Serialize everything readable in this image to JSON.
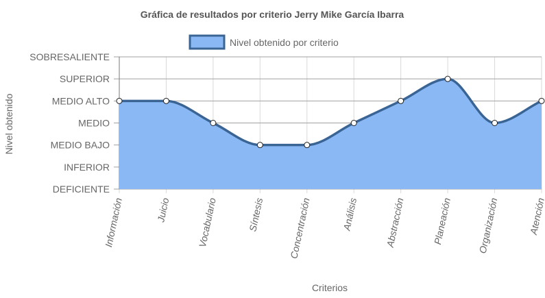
{
  "chart_data": {
    "type": "line",
    "title": "Gráfica de resultados por criterio Jerry Mike García Ibarra",
    "xlabel": "Criterios",
    "ylabel": "Nivel obtenido",
    "y_levels": [
      "DEFICIENTE",
      "INFERIOR",
      "MEDIO BAJO",
      "MEDIO",
      "MEDIO ALTO",
      "SUPERIOR",
      "SOBRESALIENTE"
    ],
    "ylim": [
      0,
      6
    ],
    "categories": [
      "Información",
      "Juicio",
      "Vocabulario",
      "Síntesis",
      "Concentración",
      "Análisis",
      "Abstracción",
      "Planeación",
      "Organización",
      "Atención"
    ],
    "series": [
      {
        "name": "Nivel obtenido por criterio",
        "values": [
          4,
          4,
          3,
          2,
          2,
          3,
          4,
          5,
          3,
          4
        ],
        "value_labels": [
          "MEDIO ALTO",
          "MEDIO ALTO",
          "MEDIO",
          "MEDIO BAJO",
          "MEDIO BAJO",
          "MEDIO",
          "MEDIO ALTO",
          "SUPERIOR",
          "MEDIO",
          "MEDIO ALTO"
        ],
        "fill_color": "#89b8f5",
        "line_color": "#3a6494",
        "point_color": "#ffffff"
      }
    ],
    "grid": true,
    "legend_position": "top",
    "filled_area": true,
    "smoothed": true
  }
}
